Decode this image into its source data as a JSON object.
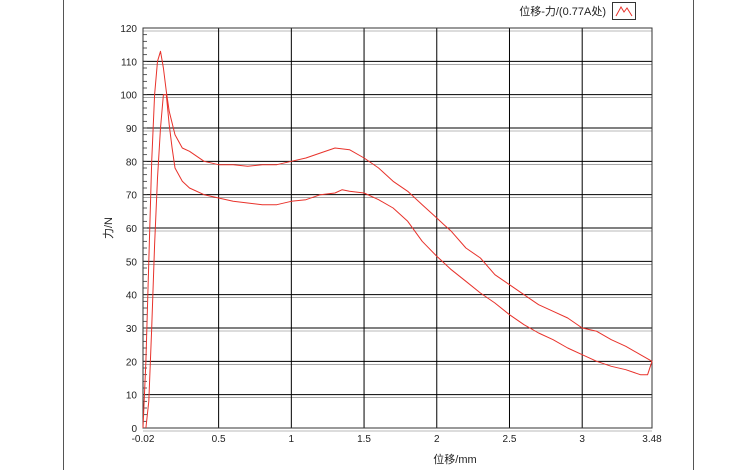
{
  "chart_data": {
    "type": "line",
    "xlabel": "位移/mm",
    "ylabel": "力/N",
    "xlim": [
      -0.02,
      3.48
    ],
    "ylim": [
      0,
      120
    ],
    "xticks": [
      -0.02,
      0.5,
      1,
      1.5,
      2,
      2.5,
      3,
      3.48
    ],
    "xtick_labels": [
      "-0.02",
      "0.5",
      "1",
      "1.5",
      "2",
      "2.5",
      "3",
      "3.48"
    ],
    "yticks": [
      0,
      10,
      20,
      30,
      40,
      50,
      60,
      70,
      80,
      90,
      100,
      110,
      120
    ],
    "ytick_labels": [
      "0",
      "10",
      "20",
      "30",
      "40",
      "50",
      "60",
      "70",
      "80",
      "90",
      "100",
      "110",
      "120"
    ],
    "grid": true,
    "legend_position": "top-right",
    "colors": {
      "series": "#e8322b",
      "grid": "#000000",
      "frame": "#555555"
    },
    "series": [
      {
        "name": "位移-力/(0.77A处)",
        "x": [
          -0.02,
          0,
          0.02,
          0.04,
          0.06,
          0.08,
          0.1,
          0.12,
          0.14,
          0.16,
          0.2,
          0.25,
          0.3,
          0.4,
          0.5,
          0.6,
          0.7,
          0.8,
          0.9,
          1.0,
          1.1,
          1.2,
          1.3,
          1.4,
          1.5,
          1.6,
          1.7,
          1.8,
          1.9,
          2.0,
          2.05,
          2.1,
          2.2,
          2.3,
          2.4,
          2.5,
          2.6,
          2.7,
          2.8,
          2.9,
          3.0,
          3.1,
          3.2,
          3.3,
          3.4,
          3.48,
          3.45,
          3.4,
          3.3,
          3.2,
          3.1,
          3.0,
          2.9,
          2.8,
          2.7,
          2.6,
          2.5,
          2.4,
          2.3,
          2.2,
          2.1,
          2.0,
          1.9,
          1.8,
          1.7,
          1.6,
          1.5,
          1.4,
          1.35,
          1.3,
          1.2,
          1.1,
          1.0,
          0.9,
          0.8,
          0.7,
          0.6,
          0.5,
          0.4,
          0.3,
          0.25,
          0.2,
          0.18,
          0.16,
          0.14,
          0.12,
          0.1,
          0.08,
          0.06,
          0.04,
          0.02,
          0
        ],
        "y": [
          0,
          20,
          50,
          80,
          100,
          110,
          113,
          108,
          101,
          95,
          88,
          84,
          83,
          80,
          79,
          79,
          78.5,
          79,
          79,
          80,
          81,
          82.5,
          84,
          83.5,
          81,
          78,
          74,
          71,
          67,
          63,
          61,
          59,
          54,
          51,
          46,
          43,
          40,
          37,
          35,
          33,
          30,
          29,
          26.5,
          24.5,
          22,
          20,
          16,
          16,
          17.5,
          18.5,
          20,
          22,
          24,
          26.5,
          28.5,
          31,
          34,
          37.5,
          40.5,
          44,
          47.5,
          51.5,
          56,
          62,
          66,
          68.5,
          70.5,
          71,
          71.5,
          70.5,
          70,
          68.5,
          68,
          67,
          67,
          67.5,
          68,
          69,
          70,
          72,
          74,
          78,
          84,
          91,
          100,
          100,
          90,
          75,
          55,
          30,
          8,
          0
        ]
      }
    ]
  }
}
